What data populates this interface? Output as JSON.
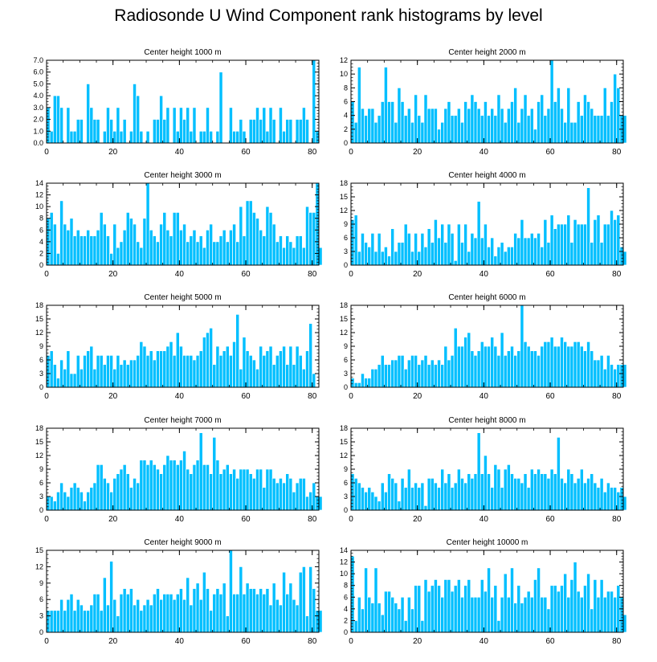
{
  "page_title": "Radiosonde U Wind Component rank histograms by level",
  "colors": {
    "bar": "#00bfff",
    "bar_edge": "#ffffff",
    "axis": "#000000",
    "text": "#000000"
  },
  "chart_data": [
    {
      "type": "bar",
      "title": "Center height 1000 m",
      "xlim": [
        0,
        82
      ],
      "ylim": [
        0,
        7
      ],
      "yticks": [
        0,
        1,
        2,
        3,
        4,
        5,
        6,
        7
      ],
      "ytick_labels": [
        "0.0",
        "1.0",
        "2.0",
        "3.0",
        "4.0",
        "5.0",
        "6.0",
        "7.0"
      ],
      "xticks": [
        0,
        20,
        40,
        60,
        80
      ],
      "values": [
        3,
        1,
        4,
        4,
        3,
        0,
        3,
        1,
        1,
        2,
        2,
        0,
        5,
        3,
        2,
        2,
        0,
        1,
        3,
        2,
        1,
        3,
        1,
        2,
        0,
        1,
        5,
        4,
        1,
        0,
        1,
        0,
        2,
        2,
        4,
        2,
        3,
        0,
        3,
        1,
        3,
        2,
        3,
        1,
        3,
        0,
        1,
        1,
        3,
        1,
        0,
        1,
        6,
        0,
        0,
        3,
        1,
        1,
        2,
        1,
        0,
        2,
        2,
        3,
        2,
        3,
        1,
        3,
        2,
        0,
        3,
        1,
        2,
        2,
        0,
        2,
        2,
        3,
        2,
        0,
        7,
        1,
        0
      ]
    },
    {
      "type": "bar",
      "title": "Center height 2000 m",
      "xlim": [
        0,
        82
      ],
      "ylim": [
        0,
        12
      ],
      "yticks": [
        0,
        2,
        4,
        6,
        8,
        10,
        12
      ],
      "ytick_labels": [
        "0",
        "2",
        "4",
        "6",
        "8",
        "10",
        "12"
      ],
      "xticks": [
        0,
        20,
        40,
        60,
        80
      ],
      "values": [
        6,
        3,
        11,
        5,
        4,
        5,
        5,
        3,
        4,
        6,
        11,
        6,
        6,
        3,
        8,
        6,
        4,
        5,
        3,
        7,
        4,
        3,
        7,
        5,
        5,
        5,
        2,
        3,
        5,
        6,
        4,
        4,
        5,
        3,
        6,
        5,
        7,
        6,
        5,
        4,
        6,
        4,
        5,
        4,
        7,
        5,
        3,
        5,
        6,
        8,
        3,
        5,
        7,
        4,
        5,
        2,
        6,
        7,
        4,
        5,
        12,
        6,
        8,
        5,
        3,
        8,
        3,
        3,
        6,
        4,
        7,
        6,
        5,
        4,
        4,
        4,
        8,
        4,
        6,
        10,
        8,
        4,
        4
      ]
    },
    {
      "type": "bar",
      "title": "Center height 3000 m",
      "xlim": [
        0,
        82
      ],
      "ylim": [
        0,
        14
      ],
      "yticks": [
        0,
        2,
        4,
        6,
        8,
        10,
        12,
        14
      ],
      "ytick_labels": [
        "0",
        "2",
        "4",
        "6",
        "8",
        "10",
        "12",
        "14"
      ],
      "xticks": [
        0,
        20,
        40,
        60,
        80
      ],
      "values": [
        8,
        9,
        7,
        2,
        11,
        7,
        6,
        8,
        5,
        6,
        5,
        5,
        6,
        5,
        5,
        6,
        9,
        7,
        5,
        2,
        7,
        3,
        4,
        6,
        9,
        8,
        7,
        4,
        3,
        8,
        14,
        6,
        5,
        4,
        7,
        9,
        6,
        5,
        9,
        9,
        6,
        7,
        4,
        5,
        6,
        4,
        5,
        3,
        6,
        7,
        4,
        4,
        5,
        6,
        4,
        6,
        7,
        4,
        10,
        5,
        11,
        11,
        9,
        8,
        6,
        5,
        10,
        9,
        7,
        4,
        5,
        3,
        5,
        4,
        3,
        5,
        5,
        3,
        10,
        9,
        9,
        14,
        3
      ]
    },
    {
      "type": "bar",
      "title": "Center height 4000 m",
      "xlim": [
        0,
        82
      ],
      "ylim": [
        0,
        18
      ],
      "yticks": [
        0,
        3,
        6,
        9,
        12,
        15,
        18
      ],
      "ytick_labels": [
        "0",
        "3",
        "6",
        "9",
        "12",
        "15",
        "18"
      ],
      "xticks": [
        0,
        20,
        40,
        60,
        80
      ],
      "values": [
        10,
        11,
        3,
        7,
        5,
        4,
        7,
        3,
        7,
        3,
        4,
        2,
        8,
        3,
        5,
        5,
        9,
        7,
        3,
        7,
        3,
        7,
        4,
        8,
        5,
        10,
        6,
        9,
        5,
        9,
        7,
        1,
        9,
        5,
        9,
        3,
        7,
        6,
        14,
        6,
        9,
        4,
        6,
        2,
        4,
        5,
        3,
        4,
        4,
        7,
        6,
        10,
        6,
        6,
        7,
        6,
        7,
        4,
        10,
        5,
        11,
        8,
        9,
        9,
        9,
        11,
        5,
        10,
        9,
        9,
        9,
        17,
        5,
        10,
        11,
        5,
        9,
        9,
        12,
        10,
        11,
        4,
        3
      ]
    },
    {
      "type": "bar",
      "title": "Center height 5000 m",
      "xlim": [
        0,
        82
      ],
      "ylim": [
        0,
        18
      ],
      "yticks": [
        0,
        3,
        6,
        9,
        12,
        15,
        18
      ],
      "ytick_labels": [
        "0",
        "3",
        "6",
        "9",
        "12",
        "15",
        "18"
      ],
      "xticks": [
        0,
        20,
        40,
        60,
        80
      ],
      "values": [
        7,
        8,
        5,
        2,
        6,
        4,
        8,
        3,
        3,
        7,
        4,
        7,
        8,
        9,
        4,
        7,
        7,
        5,
        7,
        7,
        4,
        7,
        5,
        6,
        5,
        6,
        6,
        7,
        10,
        9,
        7,
        8,
        6,
        8,
        8,
        8,
        9,
        10,
        7,
        12,
        9,
        7,
        7,
        7,
        6,
        7,
        8,
        11,
        12,
        13,
        5,
        9,
        7,
        8,
        9,
        7,
        10,
        16,
        4,
        11,
        8,
        7,
        6,
        4,
        9,
        7,
        8,
        9,
        5,
        7,
        8,
        9,
        5,
        9,
        5,
        9,
        7,
        4,
        8,
        14,
        3
      ]
    },
    {
      "type": "bar",
      "title": "Center height 6000 m",
      "xlim": [
        0,
        82
      ],
      "ylim": [
        0,
        18
      ],
      "yticks": [
        0,
        3,
        6,
        9,
        12,
        15,
        18
      ],
      "ytick_labels": [
        "0",
        "3",
        "6",
        "9",
        "12",
        "15",
        "18"
      ],
      "xticks": [
        0,
        20,
        40,
        60,
        80
      ],
      "values": [
        2,
        1,
        1,
        3,
        2,
        2,
        4,
        4,
        5,
        7,
        5,
        5,
        6,
        6,
        7,
        7,
        4,
        6,
        7,
        7,
        5,
        6,
        7,
        5,
        6,
        5,
        6,
        5,
        9,
        6,
        7,
        13,
        9,
        9,
        11,
        12,
        8,
        7,
        8,
        10,
        9,
        9,
        11,
        9,
        7,
        12,
        7,
        8,
        9,
        7,
        8,
        18,
        10,
        9,
        8,
        8,
        7,
        9,
        10,
        10,
        11,
        9,
        9,
        11,
        10,
        9,
        9,
        10,
        10,
        9,
        8,
        10,
        8,
        6,
        6,
        7,
        4,
        7,
        5,
        4,
        5,
        5,
        5
      ]
    },
    {
      "type": "bar",
      "title": "Center height 7000 m",
      "xlim": [
        0,
        82
      ],
      "ylim": [
        0,
        18
      ],
      "yticks": [
        0,
        3,
        6,
        9,
        12,
        15,
        18
      ],
      "ytick_labels": [
        "0",
        "3",
        "6",
        "9",
        "12",
        "15",
        "18"
      ],
      "xticks": [
        0,
        20,
        40,
        60,
        80
      ],
      "values": [
        3,
        3,
        2,
        4,
        6,
        4,
        3,
        5,
        6,
        5,
        4,
        2,
        4,
        5,
        6,
        10,
        10,
        7,
        6,
        4,
        7,
        8,
        9,
        10,
        8,
        5,
        7,
        6,
        11,
        11,
        10,
        11,
        10,
        9,
        8,
        10,
        12,
        11,
        11,
        10,
        11,
        13,
        9,
        8,
        10,
        11,
        17,
        10,
        10,
        8,
        16,
        11,
        8,
        9,
        10,
        8,
        9,
        7,
        9,
        9,
        9,
        8,
        7,
        9,
        9,
        5,
        9,
        9,
        7,
        6,
        7,
        6,
        8,
        7,
        4,
        6,
        7,
        7,
        3,
        4,
        6,
        3,
        3
      ]
    },
    {
      "type": "bar",
      "title": "Center height 8000 m",
      "xlim": [
        0,
        82
      ],
      "ylim": [
        0,
        18
      ],
      "yticks": [
        0,
        3,
        6,
        9,
        12,
        15,
        18
      ],
      "ytick_labels": [
        "0",
        "3",
        "6",
        "9",
        "12",
        "15",
        "18"
      ],
      "xticks": [
        0,
        20,
        40,
        60,
        80
      ],
      "values": [
        8,
        7,
        6,
        5,
        4,
        5,
        4,
        3,
        2,
        6,
        4,
        8,
        7,
        6,
        2,
        7,
        5,
        9,
        5,
        6,
        5,
        6,
        1,
        7,
        7,
        6,
        5,
        9,
        6,
        8,
        5,
        6,
        9,
        7,
        6,
        8,
        7,
        8,
        17,
        8,
        12,
        8,
        5,
        10,
        9,
        5,
        9,
        10,
        8,
        7,
        7,
        6,
        8,
        5,
        9,
        8,
        9,
        8,
        8,
        7,
        9,
        8,
        16,
        7,
        6,
        9,
        8,
        6,
        7,
        9,
        6,
        7,
        8,
        6,
        5,
        7,
        4,
        6,
        5,
        5,
        4,
        5,
        3
      ]
    },
    {
      "type": "bar",
      "title": "Center height 9000 m",
      "xlim": [
        0,
        82
      ],
      "ylim": [
        0,
        15
      ],
      "yticks": [
        0,
        3,
        6,
        9,
        12,
        15
      ],
      "ytick_labels": [
        "0",
        "3",
        "6",
        "9",
        "12",
        "15"
      ],
      "xticks": [
        0,
        20,
        40,
        60,
        80
      ],
      "values": [
        4,
        4,
        4,
        4,
        6,
        4,
        6,
        7,
        4,
        6,
        5,
        4,
        4,
        5,
        7,
        7,
        4,
        10,
        5,
        13,
        6,
        3,
        7,
        8,
        7,
        8,
        5,
        6,
        4,
        5,
        6,
        5,
        7,
        8,
        6,
        7,
        7,
        7,
        6,
        7,
        8,
        6,
        10,
        5,
        8,
        9,
        6,
        11,
        8,
        4,
        7,
        8,
        7,
        9,
        3,
        15,
        7,
        7,
        12,
        7,
        9,
        8,
        8,
        7,
        8,
        7,
        8,
        5,
        9,
        6,
        5,
        11,
        7,
        9,
        6,
        5,
        11,
        12,
        3,
        12,
        8,
        4,
        4
      ]
    },
    {
      "type": "bar",
      "title": "Center height 10000 m",
      "xlim": [
        0,
        82
      ],
      "ylim": [
        0,
        14
      ],
      "yticks": [
        0,
        2,
        4,
        6,
        8,
        10,
        12,
        14
      ],
      "ytick_labels": [
        "0",
        "2",
        "4",
        "6",
        "8",
        "10",
        "12",
        "14"
      ],
      "xticks": [
        0,
        20,
        40,
        60,
        80
      ],
      "values": [
        13,
        2,
        6,
        4,
        11,
        6,
        5,
        11,
        5,
        3,
        7,
        7,
        6,
        5,
        4,
        6,
        2,
        6,
        4,
        8,
        8,
        2,
        9,
        7,
        8,
        9,
        8,
        6,
        9,
        9,
        7,
        8,
        9,
        6,
        8,
        9,
        6,
        6,
        6,
        9,
        7,
        11,
        6,
        8,
        2,
        6,
        10,
        6,
        11,
        5,
        8,
        5,
        6,
        7,
        6,
        9,
        11,
        6,
        6,
        4,
        8,
        8,
        7,
        8,
        10,
        6,
        9,
        12,
        7,
        6,
        8,
        10,
        4,
        9,
        6,
        9,
        6,
        7,
        7,
        6,
        8,
        6,
        3
      ]
    }
  ]
}
